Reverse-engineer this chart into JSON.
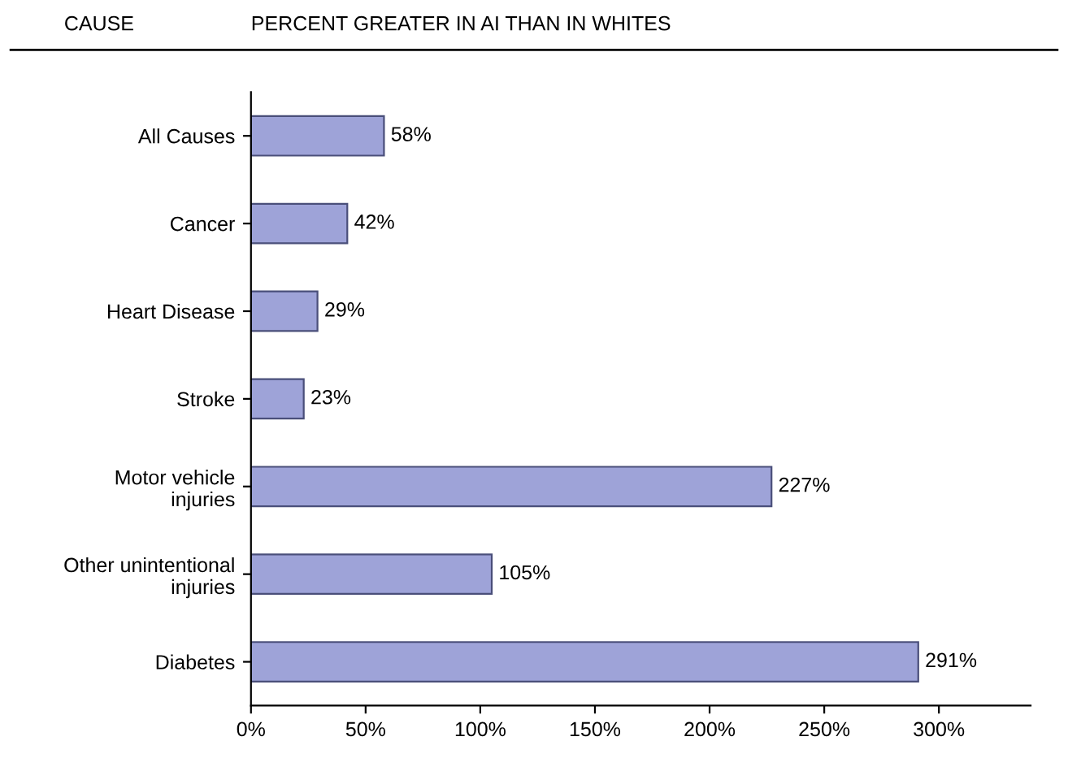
{
  "chart_data": {
    "type": "bar",
    "orientation": "horizontal",
    "title": "PERCENT GREATER IN AI THAN IN WHITES",
    "ylabel": "CAUSE",
    "categories": [
      "All Causes",
      "Cancer",
      "Heart Disease",
      "Stroke",
      "Motor vehicle\ninjuries",
      "Other unintentional\ninjuries",
      "Diabetes"
    ],
    "values": [
      58,
      42,
      29,
      23,
      227,
      105,
      291
    ],
    "value_labels": [
      "58%",
      "42%",
      "29%",
      "23%",
      "227%",
      "105%",
      "291%"
    ],
    "color": "#9ea3d8",
    "xlim": [
      0,
      340
    ],
    "xticks": [
      {
        "value": 0,
        "label": "0%"
      },
      {
        "value": 50,
        "label": "50%"
      },
      {
        "value": 100,
        "label": "100%"
      },
      {
        "value": 150,
        "label": "150%"
      },
      {
        "value": 200,
        "label": "200%"
      },
      {
        "value": 250,
        "label": "250%"
      },
      {
        "value": 300,
        "label": "300%"
      }
    ],
    "grid": false,
    "legend": false
  }
}
